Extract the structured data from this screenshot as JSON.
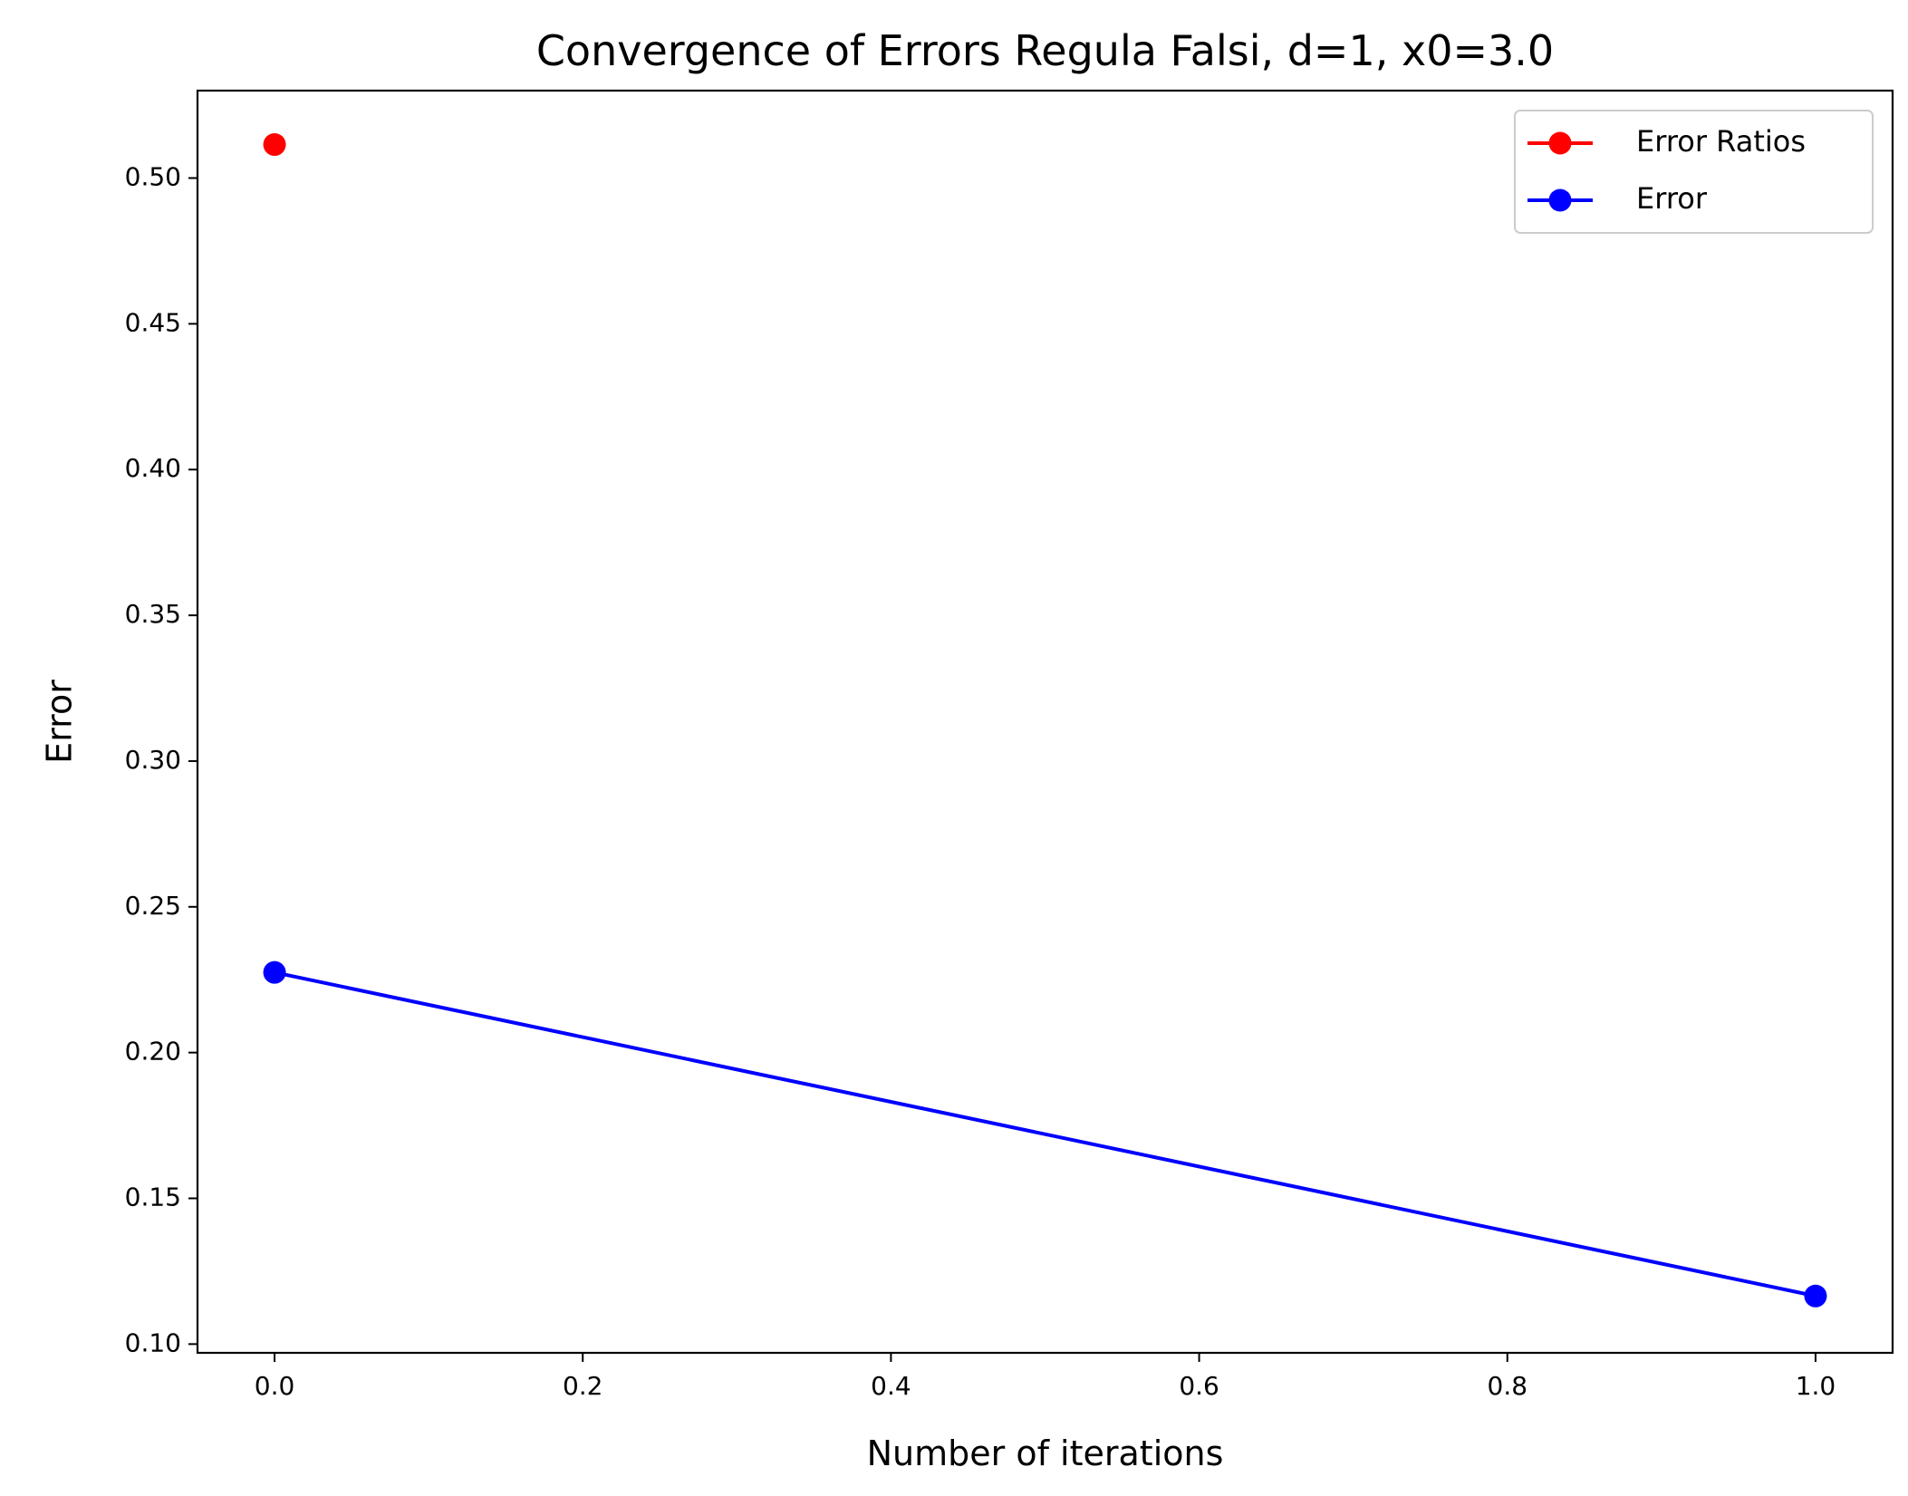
{
  "chart_data": {
    "type": "line",
    "title": "Convergence of Errors Regula Falsi, d=1, x0=3.0",
    "xlabel": "Number of iterations",
    "ylabel": "Error",
    "xlim": [
      -0.05,
      1.05
    ],
    "ylim": [
      0.097,
      0.53
    ],
    "xticks": [
      0.0,
      0.2,
      0.4,
      0.6,
      0.8,
      1.0
    ],
    "xtick_labels": [
      "0.0",
      "0.2",
      "0.4",
      "0.6",
      "0.8",
      "1.0"
    ],
    "yticks": [
      0.1,
      0.15,
      0.2,
      0.25,
      0.3,
      0.35,
      0.4,
      0.45,
      0.5
    ],
    "ytick_labels": [
      "0.10",
      "0.15",
      "0.20",
      "0.25",
      "0.30",
      "0.35",
      "0.40",
      "0.45",
      "0.50"
    ],
    "grid": false,
    "legend_position": "top-right",
    "series": [
      {
        "name": "Error Ratios",
        "color": "#ff0000",
        "x": [
          0
        ],
        "y": [
          0.5115
        ]
      },
      {
        "name": "Error",
        "color": "#0000ff",
        "x": [
          0,
          1
        ],
        "y": [
          0.2275,
          0.1165
        ]
      }
    ]
  }
}
